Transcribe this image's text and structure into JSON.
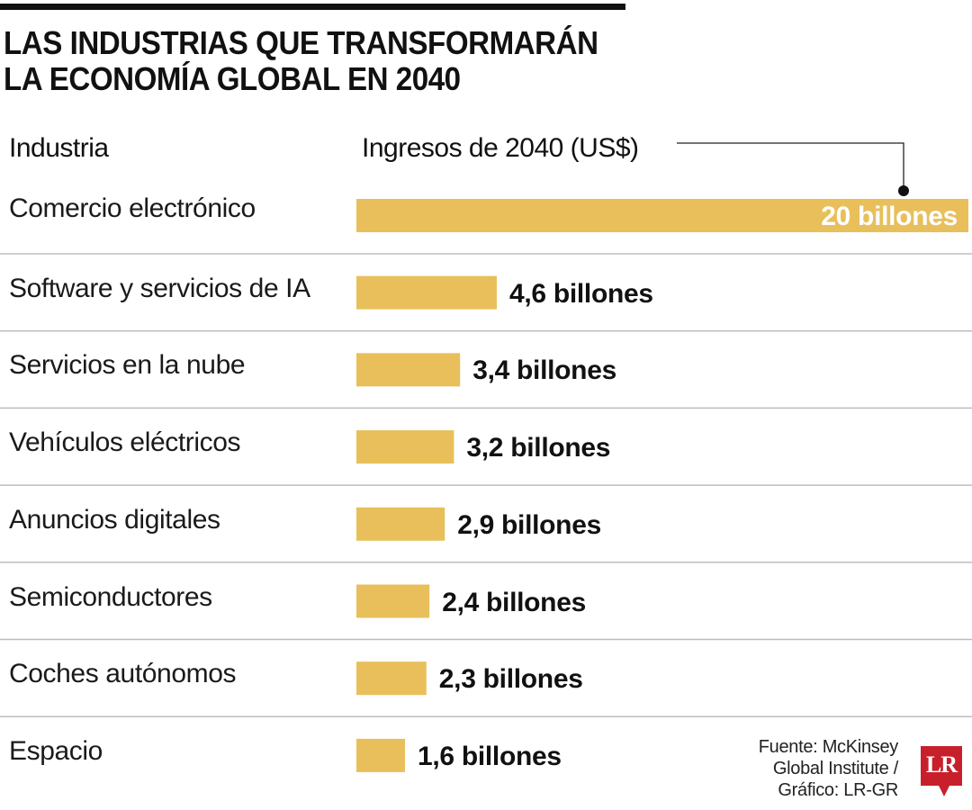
{
  "title_lines": [
    "LAS INDUSTRIAS QUE TRANSFORMARÁN",
    "LA ECONOMÍA GLOBAL EN 2040"
  ],
  "headers": {
    "industry": "Industria",
    "revenue": "Ingresos de 2040 (US$)"
  },
  "source_lines": [
    "Fuente: McKinsey",
    "Global Institute /",
    "Gráfico: LR-GR"
  ],
  "logo": {
    "text": "LR",
    "icon": "lr-logo-icon",
    "color": "#c8202a"
  },
  "colors": {
    "bar": "#e8bf5a",
    "separator": "#bdbdbd",
    "text": "#111111"
  },
  "chart_data": {
    "type": "bar",
    "orientation": "horizontal",
    "title": "LAS INDUSTRIAS QUE TRANSFORMARÁN LA ECONOMÍA GLOBAL EN 2040",
    "xlabel": "Ingresos de 2040 (US$)",
    "ylabel": "Industria",
    "unit": "billones de US$",
    "grid": false,
    "legend": "none",
    "categories": [
      "Comercio electrónico",
      "Software y servicios de IA",
      "Servicios en la nube",
      "Vehículos eléctricos",
      "Anuncios digitales",
      "Semiconductores",
      "Coches autónomos",
      "Espacio"
    ],
    "values": [
      20,
      4.6,
      3.4,
      3.2,
      2.9,
      2.4,
      2.3,
      1.6
    ],
    "data_labels": [
      "20 billones",
      "4,6 billones",
      "3,4 billones",
      "3,2 billones",
      "2,9 billones",
      "2,4 billones",
      "2,3 billones",
      "1,6 billones"
    ],
    "annotation": "Ingresos de 2040 (US$) callout pointing to largest bar"
  }
}
